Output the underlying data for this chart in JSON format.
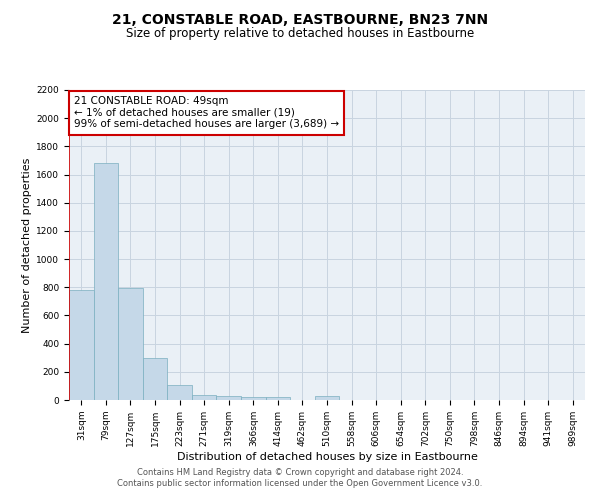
{
  "title": "21, CONSTABLE ROAD, EASTBOURNE, BN23 7NN",
  "subtitle": "Size of property relative to detached houses in Eastbourne",
  "xlabel": "Distribution of detached houses by size in Eastbourne",
  "ylabel": "Number of detached properties",
  "categories": [
    "31sqm",
    "79sqm",
    "127sqm",
    "175sqm",
    "223sqm",
    "271sqm",
    "319sqm",
    "366sqm",
    "414sqm",
    "462sqm",
    "510sqm",
    "558sqm",
    "606sqm",
    "654sqm",
    "702sqm",
    "750sqm",
    "798sqm",
    "846sqm",
    "894sqm",
    "941sqm",
    "989sqm"
  ],
  "values": [
    780,
    1680,
    795,
    295,
    110,
    38,
    25,
    20,
    20,
    0,
    25,
    0,
    0,
    0,
    0,
    0,
    0,
    0,
    0,
    0,
    0
  ],
  "bar_color": "#c5d8e8",
  "bar_edge_color": "#7aafc0",
  "bar_width": 1.0,
  "property_line_color": "#cc0000",
  "annotation_text": "21 CONSTABLE ROAD: 49sqm\n← 1% of detached houses are smaller (19)\n99% of semi-detached houses are larger (3,689) →",
  "annotation_box_color": "#ffffff",
  "annotation_box_edge_color": "#cc0000",
  "ylim": [
    0,
    2200
  ],
  "yticks": [
    0,
    200,
    400,
    600,
    800,
    1000,
    1200,
    1400,
    1600,
    1800,
    2000,
    2200
  ],
  "grid_color": "#c8d4e0",
  "background_color": "#eaf0f6",
  "footer_line1": "Contains HM Land Registry data © Crown copyright and database right 2024.",
  "footer_line2": "Contains public sector information licensed under the Open Government Licence v3.0.",
  "title_fontsize": 10,
  "subtitle_fontsize": 8.5,
  "axis_label_fontsize": 8,
  "tick_fontsize": 6.5,
  "annotation_fontsize": 7.5,
  "footer_fontsize": 6
}
